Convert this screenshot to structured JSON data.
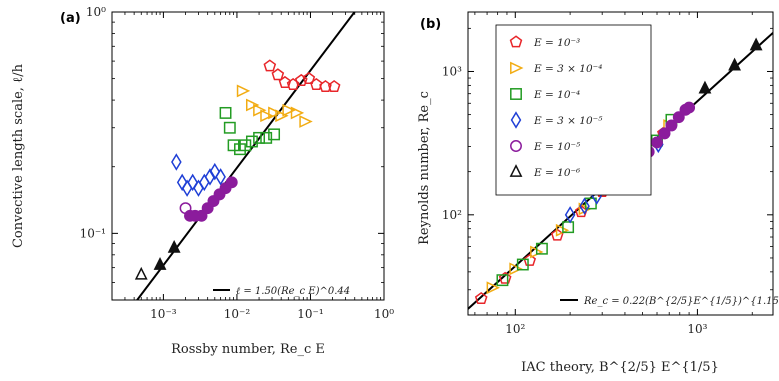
{
  "chart_data": [
    {
      "panel": "(a)",
      "type": "scatter",
      "title": "",
      "xlabel": "Rossby number, Re_c E",
      "ylabel": "Convective length scale, ℓ/h",
      "xscale": "log",
      "yscale": "log",
      "xlim": [
        0.0002,
        1
      ],
      "ylim": [
        0.05,
        1
      ],
      "xticks": [
        {
          "v": 0.001,
          "label": "10⁻³"
        },
        {
          "v": 0.01,
          "label": "10⁻²"
        },
        {
          "v": 0.1,
          "label": "10⁻¹"
        },
        {
          "v": 1,
          "label": "10⁰"
        }
      ],
      "yticks": [
        {
          "v": 0.1,
          "label": "10⁻¹"
        },
        {
          "v": 1,
          "label": "10⁰"
        }
      ],
      "fit": {
        "label": "ℓ = 1.50(Re_c E)^0.44",
        "coef": 1.5,
        "exp": 0.44
      },
      "series": [
        {
          "key": "e3",
          "points": [
            [
              0.028,
              0.57
            ],
            [
              0.036,
              0.52
            ],
            [
              0.045,
              0.48
            ],
            [
              0.058,
              0.47
            ],
            [
              0.075,
              0.49
            ],
            [
              0.095,
              0.5
            ],
            [
              0.12,
              0.47
            ],
            [
              0.16,
              0.46
            ],
            [
              0.21,
              0.46
            ]
          ]
        },
        {
          "key": "e3x4",
          "points": [
            [
              0.012,
              0.44
            ],
            [
              0.016,
              0.38
            ],
            [
              0.02,
              0.36
            ],
            [
              0.025,
              0.34
            ],
            [
              0.032,
              0.35
            ],
            [
              0.04,
              0.34
            ],
            [
              0.05,
              0.36
            ],
            [
              0.065,
              0.35
            ],
            [
              0.085,
              0.32
            ]
          ]
        },
        {
          "key": "e4",
          "points": [
            [
              0.007,
              0.35
            ],
            [
              0.008,
              0.3
            ],
            [
              0.009,
              0.25
            ],
            [
              0.011,
              0.24
            ],
            [
              0.013,
              0.25
            ],
            [
              0.016,
              0.26
            ],
            [
              0.02,
              0.27
            ],
            [
              0.025,
              0.27
            ],
            [
              0.032,
              0.28
            ]
          ]
        },
        {
          "key": "e3x5",
          "points": [
            [
              0.0015,
              0.21
            ],
            [
              0.0018,
              0.17
            ],
            [
              0.0021,
              0.16
            ],
            [
              0.0025,
              0.17
            ],
            [
              0.003,
              0.16
            ],
            [
              0.0036,
              0.17
            ],
            [
              0.0043,
              0.18
            ],
            [
              0.005,
              0.19
            ],
            [
              0.006,
              0.18
            ]
          ]
        },
        {
          "key": "e5",
          "points": [
            [
              0.002,
              0.13
            ],
            [
              0.0023,
              0.12
            ],
            [
              0.0027,
              0.12
            ],
            [
              0.0033,
              0.12
            ],
            [
              0.004,
              0.13
            ],
            [
              0.0048,
              0.14
            ],
            [
              0.0058,
              0.15
            ],
            [
              0.007,
              0.16
            ],
            [
              0.0085,
              0.17
            ]
          ]
        },
        {
          "key": "e6",
          "points": [
            [
              0.0005,
              0.065
            ],
            [
              0.0009,
              0.072
            ],
            [
              0.0014,
              0.086
            ]
          ]
        }
      ]
    },
    {
      "panel": "(b)",
      "type": "scatter",
      "title": "",
      "xlabel": "IAC theory, B^{2/5} E^{1/5}",
      "ylabel": "Reynolds number, Re_c",
      "xscale": "log",
      "yscale": "log",
      "xlim": [
        55,
        2600
      ],
      "ylim": [
        20,
        2600
      ],
      "xticks": [
        {
          "v": 100,
          "label": "10²"
        },
        {
          "v": 1000,
          "label": "10³"
        }
      ],
      "yticks": [
        {
          "v": 100,
          "label": "10²"
        },
        {
          "v": 1000,
          "label": "10³"
        }
      ],
      "fit": {
        "label": "Re_c = 0.22(B^{2/5}E^{1/5})^{1.15}",
        "coef": 0.22,
        "exp": 1.15
      },
      "series": [
        {
          "key": "e3",
          "points": [
            [
              65,
              26
            ],
            [
              88,
              36
            ],
            [
              120,
              48
            ],
            [
              170,
              72
            ],
            [
              230,
              105
            ],
            [
              300,
              145
            ],
            [
              390,
              200
            ],
            [
              520,
              300
            ],
            [
              650,
              370
            ]
          ]
        },
        {
          "key": "e3x4",
          "points": [
            [
              75,
              31
            ],
            [
              100,
              42
            ],
            [
              130,
              55
            ],
            [
              180,
              78
            ],
            [
              240,
              110
            ],
            [
              320,
              160
            ],
            [
              420,
              230
            ],
            [
              560,
              320
            ],
            [
              700,
              420
            ]
          ]
        },
        {
          "key": "e4",
          "points": [
            [
              85,
              35
            ],
            [
              110,
              45
            ],
            [
              140,
              58
            ],
            [
              195,
              82
            ],
            [
              260,
              120
            ],
            [
              350,
              175
            ],
            [
              460,
              250
            ],
            [
              600,
              330
            ],
            [
              720,
              460
            ]
          ]
        },
        {
          "key": "e3x5",
          "points": [
            [
              200,
              100
            ],
            [
              240,
              115
            ],
            [
              280,
              135
            ],
            [
              320,
              158
            ],
            [
              370,
              185
            ],
            [
              420,
              210
            ],
            [
              480,
              245
            ],
            [
              540,
              280
            ],
            [
              610,
              310
            ]
          ]
        },
        {
          "key": "e5",
          "points": [
            [
              420,
              210
            ],
            [
              480,
              240
            ],
            [
              540,
              275
            ],
            [
              600,
              320
            ],
            [
              660,
              370
            ],
            [
              720,
              420
            ],
            [
              790,
              480
            ],
            [
              860,
              540
            ],
            [
              900,
              560
            ]
          ]
        },
        {
          "key": "e6",
          "points": [
            [
              1100,
              760
            ],
            [
              1600,
              1100
            ],
            [
              2100,
              1520
            ]
          ]
        }
      ]
    }
  ],
  "legend": [
    {
      "key": "e3",
      "label": "E = 10⁻³",
      "color": "#e8262a",
      "marker": "pentagon"
    },
    {
      "key": "e3x4",
      "label": "E = 3 × 10⁻⁴",
      "color": "#f2ac13",
      "marker": "triangle-right"
    },
    {
      "key": "e4",
      "label": "E = 10⁻⁴",
      "color": "#239c23",
      "marker": "square"
    },
    {
      "key": "e3x5",
      "label": "E = 3 × 10⁻⁵",
      "color": "#1f3fd6",
      "marker": "diamond"
    },
    {
      "key": "e5",
      "label": "E = 10⁻⁵",
      "color": "#8b1c9c",
      "marker": "circle"
    },
    {
      "key": "e6",
      "label": "E = 10⁻⁶",
      "color": "#111111",
      "marker": "triangle-up"
    }
  ],
  "styles": {
    "filled_color_a": "#8b1c9c",
    "filled_color_b_e5": "#8b1c9c"
  }
}
